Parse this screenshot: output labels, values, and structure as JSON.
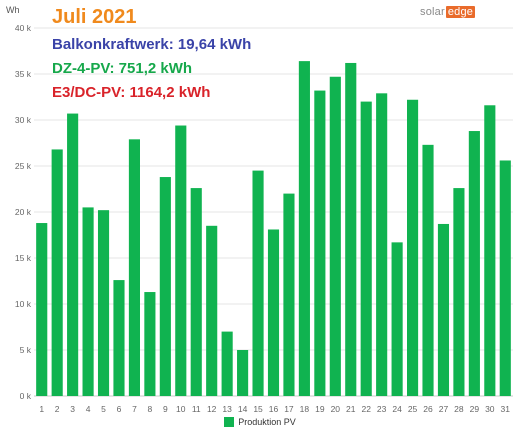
{
  "overlay": {
    "month": "Juli 2021",
    "lines": [
      {
        "text": "Balkonkraftwerk: 19,64 kWh",
        "color": "#3a43a8"
      },
      {
        "text": "DZ-4-PV: 751,2 kWh",
        "color": "#16a84b"
      },
      {
        "text": "E3/DC-PV: 1164,2 kWh",
        "color": "#d9232a"
      }
    ],
    "month_color": "#f08a1d"
  },
  "brand": {
    "part1": "solar",
    "part2": "edge"
  },
  "chart_data": {
    "type": "bar",
    "ylabel": "Wh",
    "ylim": [
      0,
      40000
    ],
    "yticks": [
      0,
      5000,
      10000,
      15000,
      20000,
      25000,
      30000,
      35000,
      40000
    ],
    "ytick_labels": [
      "0 k",
      "5 k",
      "10 k",
      "15 k",
      "20 k",
      "25 k",
      "30 k",
      "35 k",
      "40 k"
    ],
    "grid": true,
    "legend": "bottom-center",
    "categories": [
      "1",
      "2",
      "3",
      "4",
      "5",
      "6",
      "7",
      "8",
      "9",
      "10",
      "11",
      "12",
      "13",
      "14",
      "15",
      "16",
      "17",
      "18",
      "19",
      "20",
      "21",
      "22",
      "23",
      "24",
      "25",
      "26",
      "27",
      "28",
      "29",
      "30",
      "31"
    ],
    "series": [
      {
        "name": "Produktion PV",
        "color": "#10b350",
        "values": [
          18800,
          26800,
          30700,
          20500,
          20200,
          12600,
          27900,
          11300,
          23800,
          29400,
          22600,
          18500,
          7000,
          5000,
          24500,
          18100,
          22000,
          36400,
          33200,
          34700,
          36200,
          32000,
          32900,
          16700,
          32200,
          27300,
          18700,
          22600,
          28800,
          31600,
          25600
        ]
      }
    ]
  }
}
